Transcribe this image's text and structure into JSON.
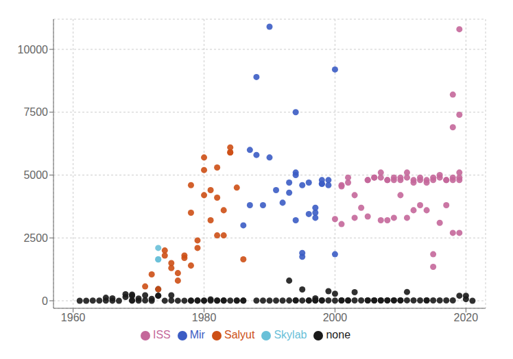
{
  "chart_data": {
    "type": "scatter",
    "xlim": [
      1957,
      2023
    ],
    "xticks": [
      1960,
      1980,
      2000,
      2020
    ],
    "ylim": [
      -300,
      11200
    ],
    "yticks": [
      0,
      2500,
      5000,
      7500,
      10000
    ],
    "grid": true,
    "legend": "bottom",
    "series": [
      {
        "name": "none",
        "color": "#1A1A1A",
        "x": [
          1961,
          1962,
          1963,
          1964,
          1965,
          1965,
          1966,
          1966,
          1967,
          1968,
          1968,
          1969,
          1969,
          1969,
          1969,
          1970,
          1970,
          1971,
          1971,
          1972,
          1972,
          1973,
          1973,
          1973,
          1974,
          1975,
          1975,
          1976,
          1977,
          1978,
          1978,
          1979,
          1979,
          1980,
          1980,
          1981,
          1981,
          1982,
          1982,
          1983,
          1983,
          1984,
          1985,
          1985,
          1986,
          1986,
          1988,
          1989,
          1990,
          1991,
          1992,
          1993,
          1993,
          1994,
          1994,
          1995,
          1995,
          1996,
          1996,
          1997,
          1997,
          1997,
          1998,
          1998,
          1999,
          1999,
          2000,
          2000,
          2001,
          2001,
          2002,
          2002,
          2003,
          2003,
          2004,
          2005,
          2005,
          2006,
          2006,
          2007,
          2007,
          2008,
          2008,
          2009,
          2009,
          2010,
          2010,
          2011,
          2011,
          2012,
          2013,
          2014,
          2014,
          2015,
          2016,
          2017,
          2018,
          2019,
          2020,
          2020,
          2021
        ],
        "values": [
          0,
          0,
          5,
          6,
          5,
          120,
          3,
          98,
          0,
          147,
          260,
          195,
          244,
          7,
          10,
          5,
          88,
          14,
          216,
          1,
          74,
          200,
          460,
          200,
          2,
          9,
          216,
          2,
          2,
          8,
          2,
          10,
          2,
          2,
          6,
          54,
          8,
          8,
          5,
          10,
          6,
          8,
          7,
          8,
          6,
          4,
          5,
          5,
          5,
          5,
          8,
          10,
          800,
          14,
          11,
          9,
          450,
          10,
          9,
          10,
          12,
          96,
          10,
          12,
          12,
          380,
          8,
          280,
          13,
          12,
          11,
          12,
          14,
          340,
          14,
          14,
          14,
          13,
          13,
          13,
          12,
          16,
          12,
          16,
          15,
          15,
          16,
          16,
          350,
          13,
          14,
          15,
          14,
          15,
          14,
          12,
          12,
          200,
          63,
          200,
          1
        ]
      },
      {
        "name": "Salyut",
        "color": "#CD4F15",
        "x": [
          1971,
          1972,
          1973,
          1974,
          1974,
          1975,
          1975,
          1976,
          1976,
          1977,
          1977,
          1978,
          1978,
          1978,
          1979,
          1979,
          1980,
          1980,
          1980,
          1981,
          1981,
          1982,
          1982,
          1982,
          1983,
          1983,
          1984,
          1984,
          1984,
          1985,
          1986
        ],
        "values": [
          570,
          1050,
          460,
          1800,
          2000,
          1500,
          1300,
          1100,
          800,
          1800,
          1700,
          1400,
          3500,
          4600,
          2400,
          2100,
          5200,
          5700,
          4200,
          4400,
          3200,
          5300,
          4100,
          2600,
          2600,
          3600,
          6100,
          5900,
          5900,
          4500,
          1650
        ]
      },
      {
        "name": "Skylab",
        "color": "#69C0D8",
        "x": [
          1973,
          1973,
          1973
        ],
        "values": [
          2100,
          1650,
          1640
        ]
      },
      {
        "name": "Mir",
        "color": "#3B5CC4",
        "x": [
          1986,
          1987,
          1987,
          1988,
          1988,
          1989,
          1990,
          1990,
          1991,
          1992,
          1993,
          1993,
          1994,
          1994,
          1994,
          1994,
          1995,
          1995,
          1995,
          1996,
          1996,
          1997,
          1997,
          1997,
          1998,
          1998,
          1998,
          1999,
          1999,
          2000,
          2000
        ],
        "values": [
          3000,
          6000,
          3800,
          5800,
          8900,
          3800,
          5700,
          10900,
          4400,
          3900,
          4300,
          4700,
          5000,
          5100,
          3200,
          7500,
          1900,
          4600,
          1750,
          4700,
          3450,
          3300,
          3500,
          3700,
          4650,
          4800,
          4650,
          4600,
          4800,
          1850,
          9200
        ]
      },
      {
        "name": "ISS",
        "color": "#C4679A",
        "x": [
          2000,
          2001,
          2001,
          2002,
          2002,
          2003,
          2003,
          2004,
          2005,
          2005,
          2005,
          2006,
          2006,
          2007,
          2007,
          2007,
          2008,
          2008,
          2008,
          2009,
          2009,
          2009,
          2010,
          2010,
          2010,
          2011,
          2011,
          2011,
          2012,
          2012,
          2012,
          2013,
          2013,
          2013,
          2014,
          2014,
          2014,
          2015,
          2015,
          2015,
          2015,
          2016,
          2016,
          2016,
          2017,
          2017,
          2017,
          2018,
          2018,
          2018,
          2018,
          2018,
          2019,
          2019,
          2019,
          2019,
          2019,
          2019,
          2001
        ],
        "values": [
          3250,
          4600,
          4550,
          4700,
          4900,
          3300,
          4200,
          3700,
          4800,
          4800,
          3350,
          4900,
          4900,
          4900,
          5100,
          3200,
          4800,
          4800,
          3200,
          4900,
          4800,
          3300,
          4800,
          4900,
          4200,
          5100,
          4900,
          3300,
          4800,
          4700,
          3600,
          4800,
          4900,
          3800,
          4800,
          4700,
          3600,
          4900,
          4800,
          1850,
          1350,
          5000,
          4900,
          3100,
          4800,
          4800,
          3800,
          4900,
          4800,
          2700,
          8200,
          6900,
          4800,
          4900,
          2700,
          5100,
          7400,
          10800,
          3050
        ]
      }
    ]
  }
}
